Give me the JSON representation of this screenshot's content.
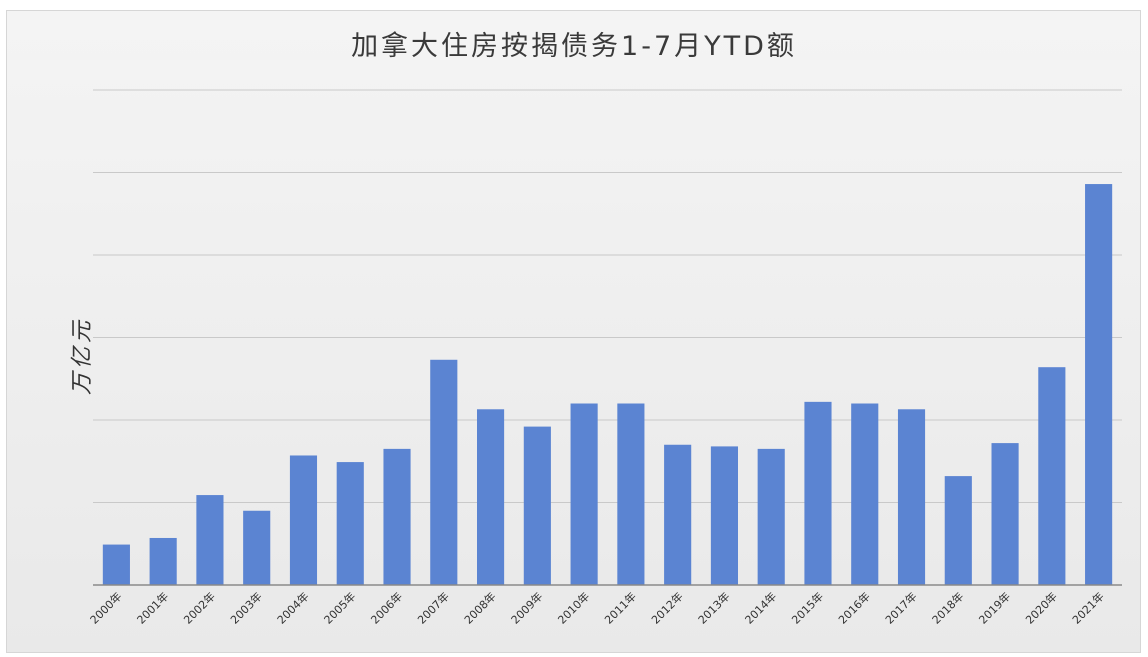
{
  "chart_data": {
    "type": "bar",
    "title": "加拿大住房按揭债务1-7月YTD额",
    "xlabel": "",
    "ylabel": "万亿元",
    "categories": [
      "2000年",
      "2001年",
      "2002年",
      "2003年",
      "2004年",
      "2005年",
      "2006年",
      "2007年",
      "2008年",
      "2009年",
      "2010年",
      "2011年",
      "2012年",
      "2013年",
      "2014年",
      "2015年",
      "2016年",
      "2017年",
      "2018年",
      "2019年",
      "2020年",
      "2021年"
    ],
    "values": [
      0.49,
      0.57,
      1.09,
      0.9,
      1.57,
      1.49,
      1.65,
      2.73,
      2.13,
      1.92,
      2.2,
      2.2,
      1.7,
      1.68,
      1.65,
      2.22,
      2.2,
      2.13,
      1.32,
      1.72,
      2.64,
      4.86
    ],
    "ylim": [
      0,
      6
    ],
    "grid": true,
    "bar_color": "#5b84d2",
    "gridline_color": "#c9c9c9"
  }
}
